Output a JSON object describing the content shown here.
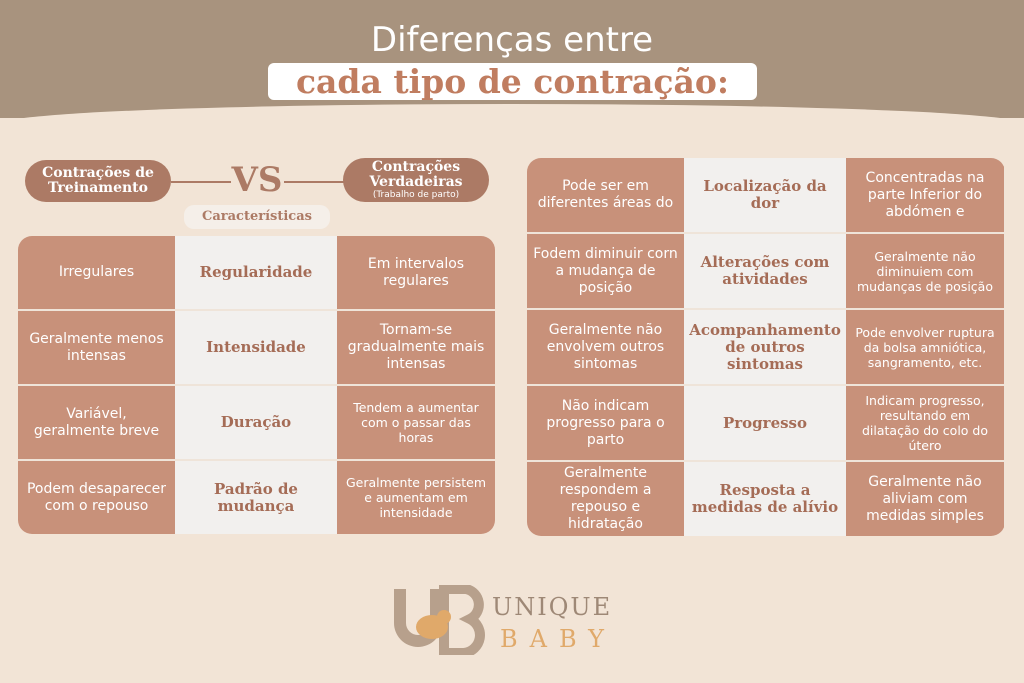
{
  "title": {
    "line1": "Diferenças entre",
    "line2": "cada tipo de contração:"
  },
  "left_tag": "Contrações de Treinamento",
  "vs": "VS",
  "right_tag": {
    "title": "Contrações Verdadeiras",
    "subtitle": "(Trabalho de parto)"
  },
  "characteristics_label": "Características",
  "left_table": [
    {
      "training": "Irregulares",
      "feature": "Regularidade",
      "true": "Em intervalos regulares"
    },
    {
      "training": "Geralmente menos intensas",
      "feature": "Intensidade",
      "true": "Tornam-se gradualmente mais intensas"
    },
    {
      "training": "Variável, geralmente breve",
      "feature": "Duração",
      "true": "Tendem a aumentar com o passar das horas"
    },
    {
      "training": "Podem desaparecer com o repouso",
      "feature": "Padrão de mudança",
      "true": "Geralmente persistem e aumentam em intensidade"
    }
  ],
  "right_table": [
    {
      "training": "Pode ser em diferentes áreas do",
      "feature": "Localização da dor",
      "true": "Concentradas na parte Inferior do abdómen e"
    },
    {
      "training": "Fodem diminuir corn a mudança de posição",
      "feature": "Alterações com atividades",
      "true": "Geralmente não diminuiem com mudanças de posição"
    },
    {
      "training": "Geralmente não envolvem outros sintomas",
      "feature": "Acompanhamento de outros sintomas",
      "true": "Pode envolver ruptura da bolsa amniótica, sangramento, etc."
    },
    {
      "training": "Não indicam progresso para o parto",
      "feature": "Progresso",
      "true": "Indicam progresso, resultando em dilatação do colo do útero"
    },
    {
      "training": "Geralmente respondem a repouso e hidratação",
      "feature": "Resposta a medidas de alívio",
      "true": "Geralmente não aliviam com medidas simples"
    }
  ],
  "logo": {
    "mark": "UB",
    "line1": "UNIQUE",
    "line2": "BABY"
  },
  "colors": {
    "header": "#a8937e",
    "background": "#f2e4d6",
    "cell": "#c8917a",
    "accent": "#ac7a65"
  }
}
